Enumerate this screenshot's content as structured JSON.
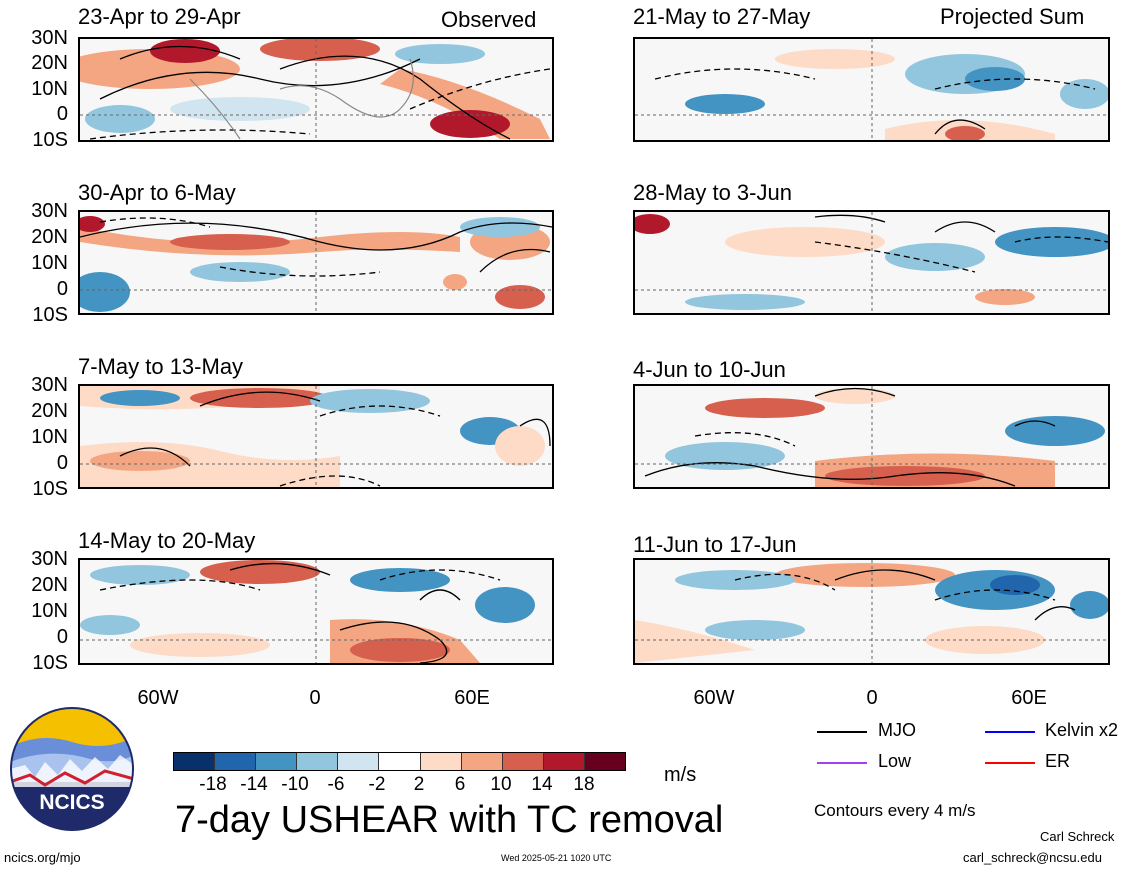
{
  "headers": {
    "left": "Observed",
    "right": "Projected Sum"
  },
  "left_panels": [
    {
      "title": "23-Apr to 29-Apr"
    },
    {
      "title": "30-Apr to 6-May"
    },
    {
      "title": "7-May to 13-May"
    },
    {
      "title": "14-May to 20-May"
    }
  ],
  "right_panels": [
    {
      "title": "21-May to 27-May"
    },
    {
      "title": "28-May to 3-Jun"
    },
    {
      "title": "4-Jun to 10-Jun"
    },
    {
      "title": "11-Jun to 17-Jun"
    }
  ],
  "lat_labels": [
    "30N",
    "20N",
    "10N",
    "0",
    "10S"
  ],
  "lon_labels": [
    "60W",
    "0",
    "60E"
  ],
  "colorbar": {
    "labels": [
      "-18",
      "-14",
      "-10",
      "-6",
      "-2",
      "2",
      "6",
      "10",
      "14",
      "18"
    ],
    "units": "m/s",
    "colors": [
      "#08306b",
      "#2166ac",
      "#4393c3",
      "#92c5de",
      "#d1e5f0",
      "#ffffff",
      "#fddbc7",
      "#f4a582",
      "#d6604d",
      "#b2182b",
      "#67001f"
    ]
  },
  "legend": {
    "items": [
      {
        "label": "MJO",
        "color": "#000000"
      },
      {
        "label": "Kelvin x2",
        "color": "#0000ff"
      },
      {
        "label": "Low",
        "color": "#a040f0"
      },
      {
        "label": "ER",
        "color": "#ff0000"
      }
    ],
    "contour_note": "Contours every 4 m/s"
  },
  "title": "7-day USHEAR with TC removal",
  "logo": {
    "text": "NCICS"
  },
  "footer": {
    "url": "ncics.org/mjo",
    "timestamp": "Wed 2025-05-21 1020 UTC",
    "author": "Carl Schreck",
    "email": "carl_schreck@ncsu.edu"
  }
}
